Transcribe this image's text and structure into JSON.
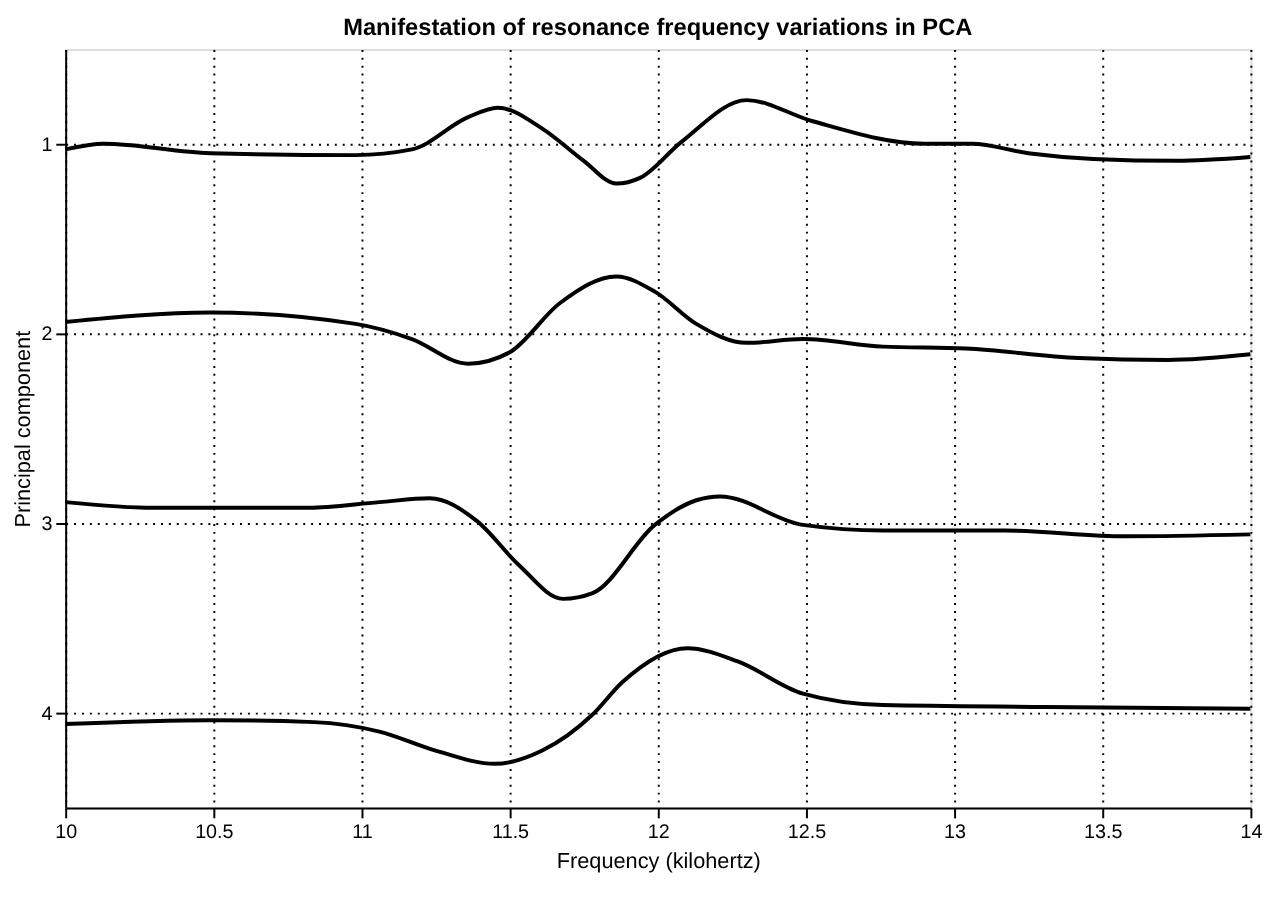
{
  "chart_data": {
    "type": "line",
    "title": "Manifestation of resonance frequency variations in PCA",
    "xlabel": "Frequency (kilohertz)",
    "ylabel": "Principal component",
    "xlim": [
      10,
      14
    ],
    "xticks": [
      10,
      10.5,
      11,
      11.5,
      12,
      12.5,
      13,
      13.5,
      14
    ],
    "ylim": [
      4.5,
      0.5
    ],
    "yticks": [
      1,
      2,
      3,
      4
    ],
    "grid": true,
    "marker": "none",
    "line_style": "solid",
    "series": [
      {
        "color": "#000000",
        "x": [
          10,
          10.13,
          10.49,
          10.98,
          11.17,
          11.36,
          11.46,
          11.61,
          11.75,
          11.86,
          11.94,
          12.08,
          12.3,
          12.52,
          12.9,
          13.06,
          13.25,
          13.47,
          13.75,
          14
        ],
        "values": [
          1.03,
          1.0,
          1.05,
          1.06,
          1.03,
          0.86,
          0.81,
          0.92,
          1.09,
          1.21,
          1.18,
          0.99,
          0.77,
          0.88,
          1.0,
          1.0,
          1.05,
          1.08,
          1.09,
          1.07
        ]
      },
      {
        "color": "#000000",
        "x": [
          10,
          10.49,
          10.98,
          11.17,
          11.36,
          11.5,
          11.67,
          11.86,
          11.99,
          12.13,
          12.3,
          12.49,
          12.76,
          13.04,
          13.42,
          13.72,
          14
        ],
        "values": [
          1.94,
          1.89,
          1.95,
          2.03,
          2.16,
          2.1,
          1.84,
          1.7,
          1.78,
          1.95,
          2.05,
          2.03,
          2.07,
          2.08,
          2.13,
          2.14,
          2.11
        ]
      },
      {
        "color": "#000000",
        "x": [
          10,
          10.3,
          10.82,
          11.06,
          11.23,
          11.39,
          11.53,
          11.68,
          11.78,
          11.99,
          12.13,
          12.21,
          12.49,
          12.76,
          13.17,
          13.58,
          14
        ],
        "values": [
          2.89,
          2.92,
          2.92,
          2.89,
          2.87,
          2.99,
          3.22,
          3.4,
          3.37,
          3.01,
          2.88,
          2.86,
          3.01,
          3.04,
          3.04,
          3.07,
          3.06
        ]
      },
      {
        "color": "#000000",
        "x": [
          10,
          10.49,
          10.84,
          11.06,
          11.25,
          11.45,
          11.61,
          11.78,
          11.88,
          12.1,
          12.27,
          12.49,
          12.76,
          13.31,
          14
        ],
        "values": [
          4.06,
          4.04,
          4.05,
          4.1,
          4.2,
          4.27,
          4.2,
          4.01,
          3.84,
          3.66,
          3.73,
          3.9,
          3.96,
          3.97,
          3.98
        ]
      }
    ]
  }
}
